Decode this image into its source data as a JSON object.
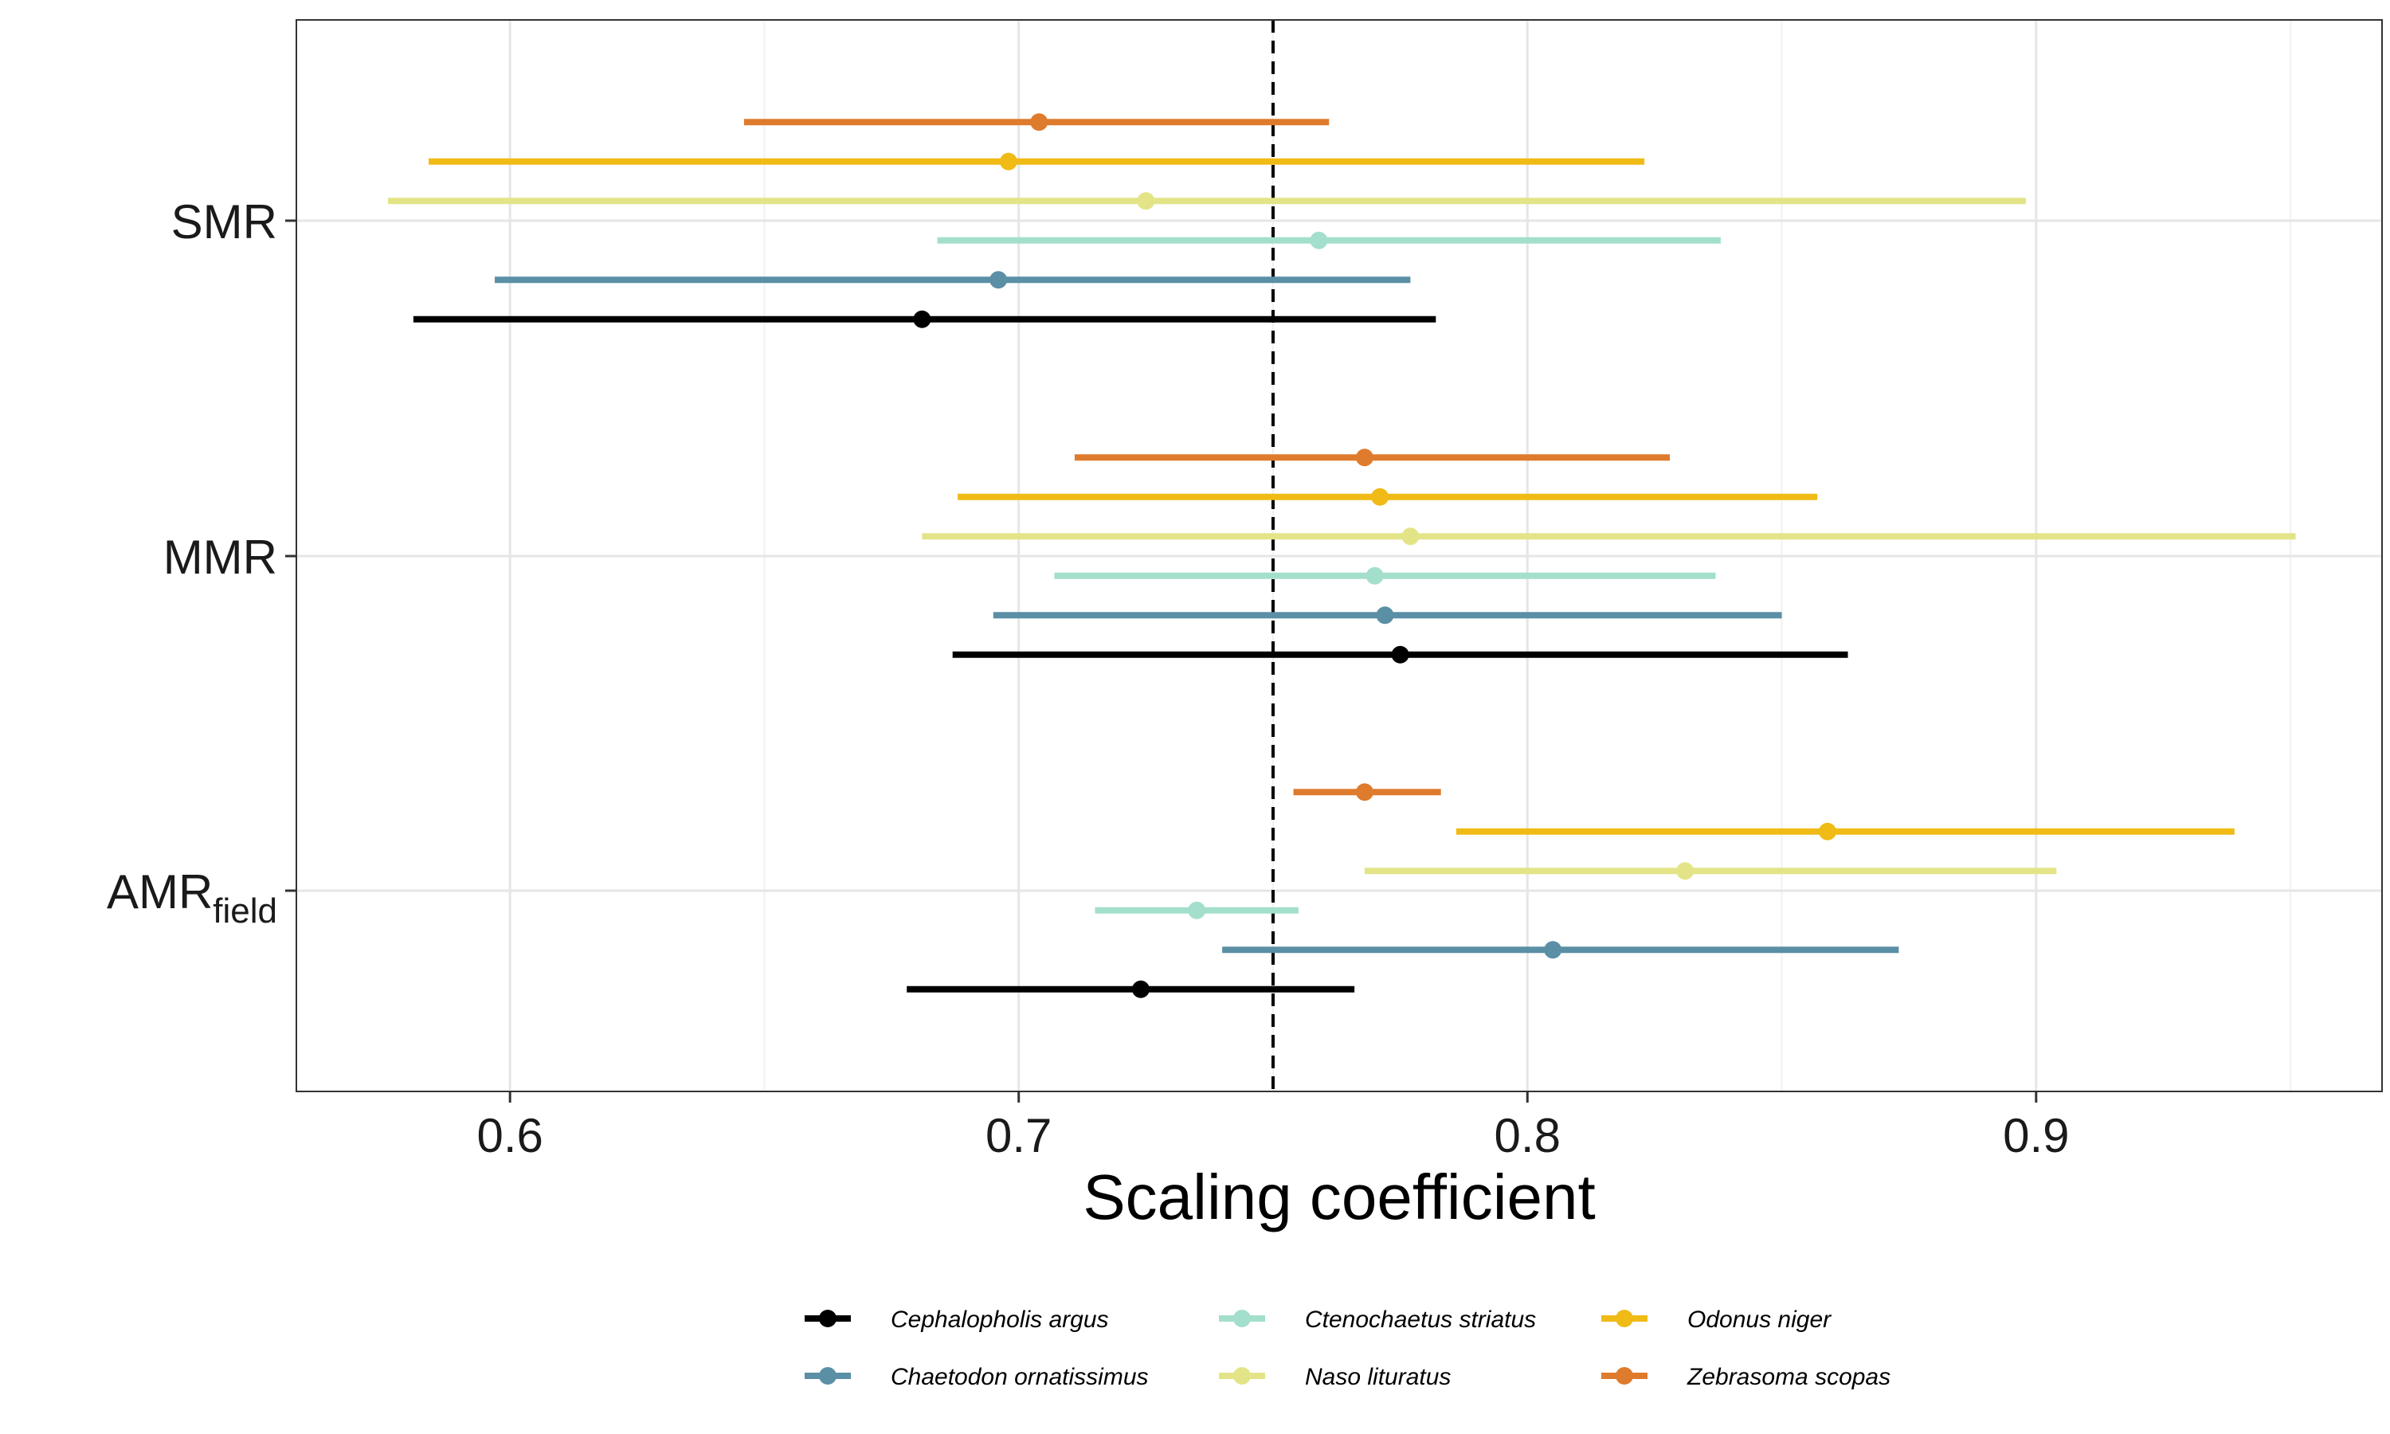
{
  "chart_data": {
    "type": "forest",
    "xlabel": "Scaling coefficient",
    "ylabel": "",
    "xlim": [
      0.558,
      0.968
    ],
    "x_ticks": [
      0.6,
      0.7,
      0.8,
      0.9
    ],
    "x_tick_labels": [
      "0.6",
      "0.7",
      "0.8",
      "0.9"
    ],
    "reference_line": 0.75,
    "grid": true,
    "legend_position": "bottom",
    "categories": [
      {
        "base": "SMR",
        "sub": ""
      },
      {
        "base": "MMR",
        "sub": ""
      },
      {
        "base": "AMR",
        "sub": "field"
      }
    ],
    "series": [
      {
        "name": "Cephalopholis argus",
        "color": "#000000",
        "points": [
          {
            "est": 0.681,
            "lo": 0.581,
            "hi": 0.782
          },
          {
            "est": 0.775,
            "lo": 0.687,
            "hi": 0.863
          },
          {
            "est": 0.724,
            "lo": 0.678,
            "hi": 0.766
          }
        ]
      },
      {
        "name": "Chaetodon ornatissimus",
        "color": "#5a8fa6",
        "points": [
          {
            "est": 0.696,
            "lo": 0.597,
            "hi": 0.777
          },
          {
            "est": 0.772,
            "lo": 0.695,
            "hi": 0.85
          },
          {
            "est": 0.805,
            "lo": 0.74,
            "hi": 0.873
          }
        ]
      },
      {
        "name": "Ctenochaetus striatus",
        "color": "#a3dfcc",
        "points": [
          {
            "est": 0.759,
            "lo": 0.684,
            "hi": 0.838
          },
          {
            "est": 0.77,
            "lo": 0.707,
            "hi": 0.837
          },
          {
            "est": 0.735,
            "lo": 0.715,
            "hi": 0.755
          }
        ]
      },
      {
        "name": "Naso lituratus",
        "color": "#e3e487",
        "points": [
          {
            "est": 0.725,
            "lo": 0.576,
            "hi": 0.898
          },
          {
            "est": 0.777,
            "lo": 0.681,
            "hi": 0.951
          },
          {
            "est": 0.831,
            "lo": 0.768,
            "hi": 0.904
          }
        ]
      },
      {
        "name": "Odonus niger",
        "color": "#f0bb17",
        "points": [
          {
            "est": 0.698,
            "lo": 0.584,
            "hi": 0.823
          },
          {
            "est": 0.771,
            "lo": 0.688,
            "hi": 0.857
          },
          {
            "est": 0.859,
            "lo": 0.786,
            "hi": 0.939
          }
        ]
      },
      {
        "name": "Zebrasoma scopas",
        "color": "#df7b2d",
        "points": [
          {
            "est": 0.704,
            "lo": 0.646,
            "hi": 0.761
          },
          {
            "est": 0.768,
            "lo": 0.711,
            "hi": 0.828
          },
          {
            "est": 0.768,
            "lo": 0.754,
            "hi": 0.783
          }
        ]
      }
    ]
  }
}
